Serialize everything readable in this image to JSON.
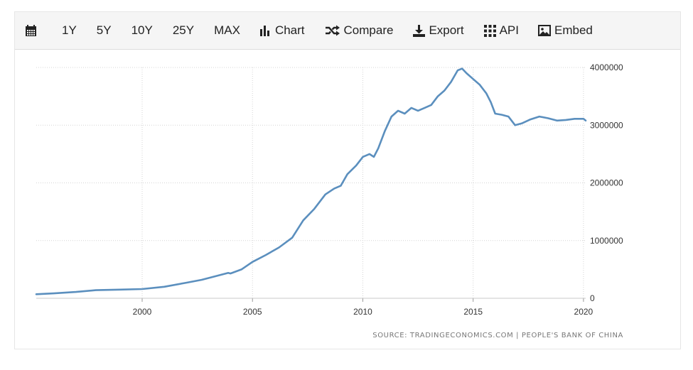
{
  "toolbar": {
    "calendar_icon": "calendar-icon",
    "range_1y": "1Y",
    "range_5y": "5Y",
    "range_10y": "10Y",
    "range_25y": "25Y",
    "range_max": "MAX",
    "chart_label": "Chart",
    "chart_icon": "bar-chart-icon",
    "compare_label": "Compare",
    "compare_icon": "shuffle-icon",
    "export_label": "Export",
    "export_icon": "download-icon",
    "api_label": "API",
    "api_icon": "grid-dots-icon",
    "embed_label": "Embed",
    "embed_icon": "image-icon"
  },
  "source": "SOURCE: TRADINGECONOMICS.COM | PEOPLE'S BANK OF CHINA",
  "colors": {
    "line": "#5b8fbe",
    "grid": "#d4d4d4",
    "toolbar_bg": "#f5f5f5"
  },
  "chart_data": {
    "type": "line",
    "title": "",
    "xlabel": "",
    "ylabel": "",
    "x_ticks": [
      "2000",
      "2005",
      "2010",
      "2015",
      "2020"
    ],
    "y_ticks": [
      "0",
      "1000000",
      "2000000",
      "3000000",
      "4000000"
    ],
    "xlim": [
      1995.2,
      2020.1
    ],
    "ylim": [
      0,
      4000000
    ],
    "y_axis_side": "right",
    "grid": true,
    "series": [
      {
        "color": "#5b8fbe",
        "x": [
          1995.2,
          1996.0,
          1997.0,
          1997.9,
          1999.0,
          2000.0,
          2001.0,
          2002.0,
          2002.7,
          2003.3,
          2003.9,
          2004.0,
          2004.5,
          2005.0,
          2005.6,
          2006.2,
          2006.8,
          2007.3,
          2007.8,
          2008.3,
          2008.7,
          2009.0,
          2009.3,
          2009.7,
          2010.0,
          2010.3,
          2010.5,
          2010.7,
          2011.0,
          2011.3,
          2011.6,
          2011.9,
          2012.2,
          2012.5,
          2012.8,
          2013.1,
          2013.4,
          2013.7,
          2014.0,
          2014.3,
          2014.5,
          2014.7,
          2015.0,
          2015.3,
          2015.6,
          2015.8,
          2016.0,
          2016.3,
          2016.6,
          2016.9,
          2017.2,
          2017.6,
          2018.0,
          2018.4,
          2018.8,
          2019.2,
          2019.6,
          2020.0,
          2020.1
        ],
        "values": [
          70000,
          85000,
          110000,
          140000,
          150000,
          160000,
          200000,
          270000,
          320000,
          380000,
          440000,
          430000,
          500000,
          630000,
          750000,
          880000,
          1050000,
          1350000,
          1550000,
          1800000,
          1900000,
          1950000,
          2150000,
          2300000,
          2450000,
          2500000,
          2450000,
          2600000,
          2900000,
          3150000,
          3250000,
          3200000,
          3300000,
          3250000,
          3300000,
          3350000,
          3500000,
          3600000,
          3750000,
          3950000,
          3980000,
          3900000,
          3800000,
          3700000,
          3550000,
          3400000,
          3200000,
          3180000,
          3150000,
          3000000,
          3030000,
          3100000,
          3150000,
          3120000,
          3080000,
          3090000,
          3110000,
          3110000,
          3080000
        ]
      }
    ],
    "annotations": [
      "SOURCE: TRADINGECONOMICS.COM | PEOPLE'S BANK OF CHINA"
    ]
  }
}
